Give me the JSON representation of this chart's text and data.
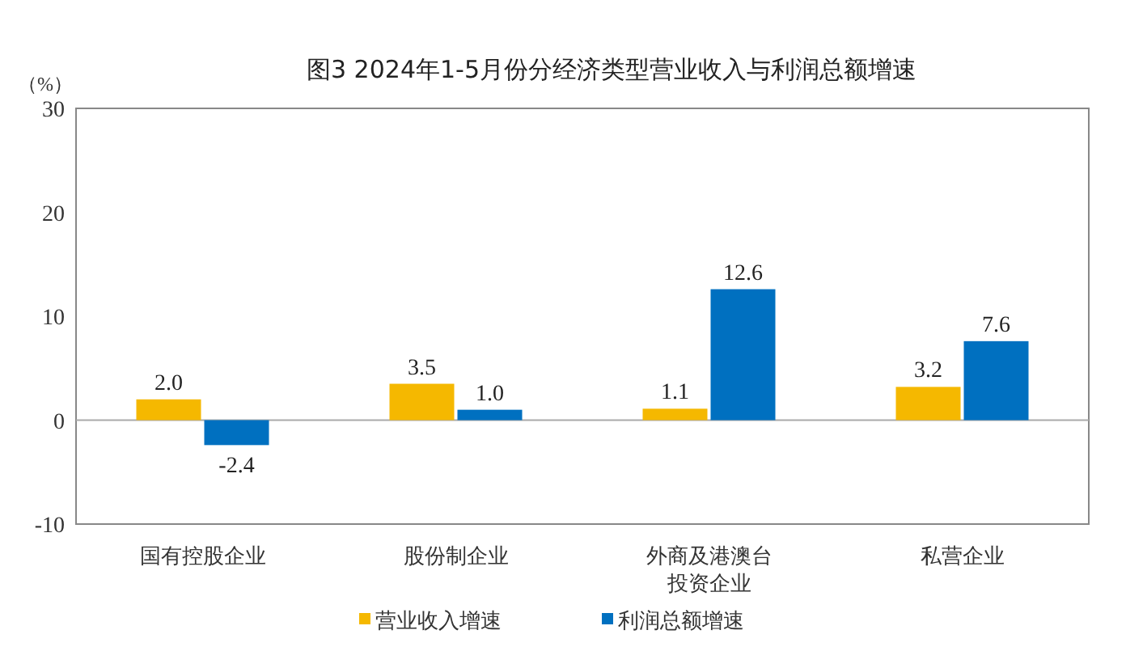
{
  "chart_data": {
    "type": "bar",
    "title": "图3 2024年1-5月份分经济类型营业收入与利润总额增速",
    "ylabel": "（%）",
    "categories": [
      "国有控股企业",
      "股份制企业",
      "外商及港澳台投资企业",
      "私营企业"
    ],
    "series": [
      {
        "name": "营业收入增速",
        "color": "#f5b800",
        "values": [
          2.0,
          3.5,
          1.1,
          3.2
        ],
        "value_labels": [
          "2.0",
          "3.5",
          "1.1",
          "3.2"
        ]
      },
      {
        "name": "利润总额增速",
        "color": "#0070c0",
        "values": [
          -2.4,
          1.0,
          12.6,
          7.6
        ],
        "value_labels": [
          "-2.4",
          "1.0",
          "12.6",
          "7.6"
        ]
      }
    ],
    "ylim": [
      -10,
      30
    ],
    "yticks": [
      -10,
      0,
      10,
      20,
      30
    ],
    "legend": "bottom"
  }
}
